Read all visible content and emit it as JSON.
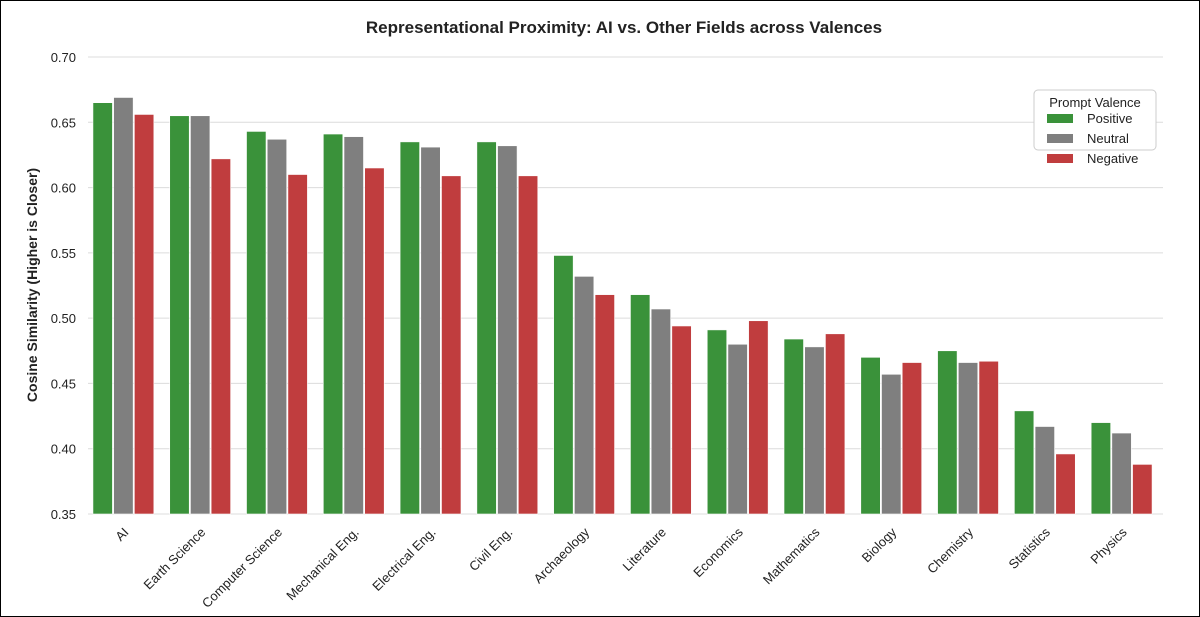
{
  "chart_data": {
    "type": "bar",
    "title": "Representational Proximity: AI vs. Other Fields across Valences",
    "xlabel": "",
    "ylabel": "Cosine Similarity (Higher is Closer)",
    "ylim": [
      0.35,
      0.7
    ],
    "yticks": [
      "0.35",
      "0.40",
      "0.45",
      "0.50",
      "0.55",
      "0.60",
      "0.65",
      "0.70"
    ],
    "grid": "horizontal",
    "legend": {
      "title": "Prompt Valence",
      "placement": "top-right"
    },
    "categories": [
      "AI",
      "Earth Science",
      "Computer Science",
      "Mechanical Eng.",
      "Electrical Eng.",
      "Civil Eng.",
      "Archaeology",
      "Literature",
      "Economics",
      "Mathematics",
      "Biology",
      "Chemistry",
      "Statistics",
      "Physics"
    ],
    "series": [
      {
        "name": "Positive",
        "color": "#3a923a",
        "values": [
          0.665,
          0.655,
          0.643,
          0.641,
          0.635,
          0.635,
          0.548,
          0.518,
          0.491,
          0.484,
          0.47,
          0.475,
          0.429,
          0.42
        ]
      },
      {
        "name": "Neutral",
        "color": "#7f7f7f",
        "values": [
          0.669,
          0.655,
          0.637,
          0.639,
          0.631,
          0.632,
          0.532,
          0.507,
          0.48,
          0.478,
          0.457,
          0.466,
          0.417,
          0.412
        ]
      },
      {
        "name": "Negative",
        "color": "#c03d3e",
        "values": [
          0.656,
          0.622,
          0.61,
          0.615,
          0.609,
          0.609,
          0.518,
          0.494,
          0.498,
          0.488,
          0.466,
          0.467,
          0.396,
          0.388
        ]
      }
    ]
  }
}
